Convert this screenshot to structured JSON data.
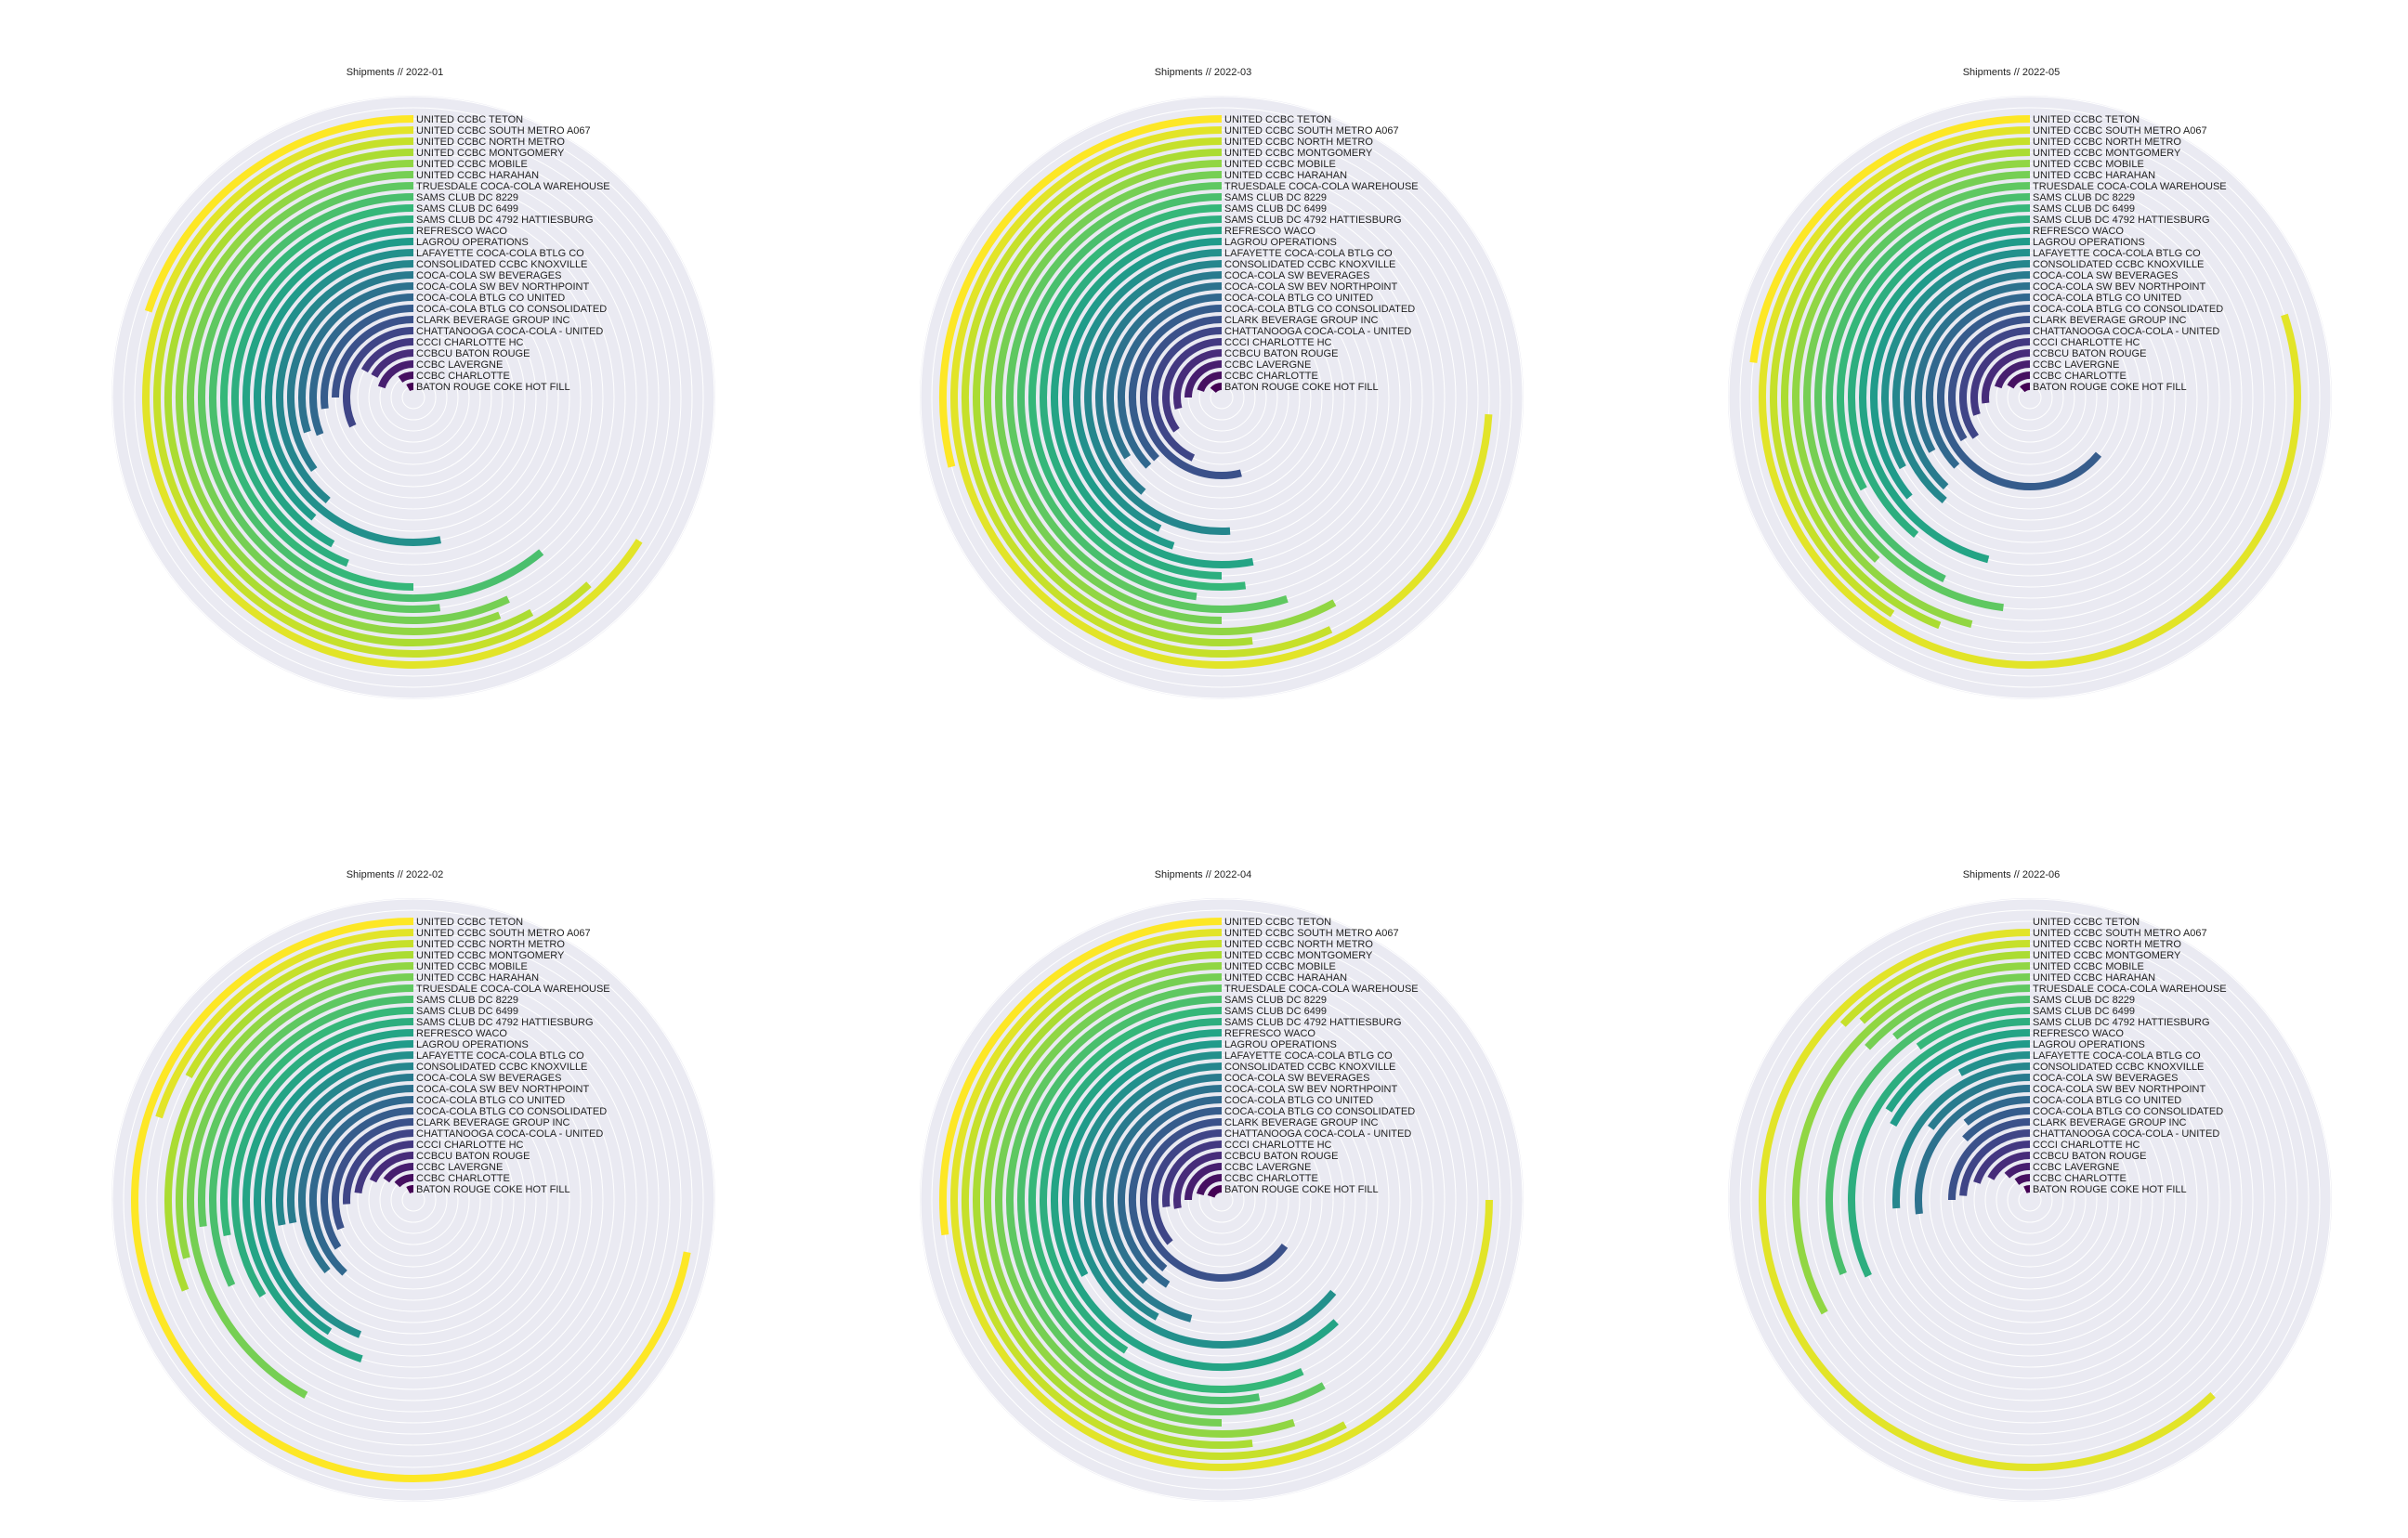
{
  "figure_background": "#ffffff",
  "track_color": "#eaeaf2",
  "grid_color": "#ffffff",
  "colormap": "viridis",
  "chart_data": [
    {
      "type": "radial-bar",
      "title": "Shipments // 2022-01",
      "categories": [
        "UNITED CCBC TETON",
        "UNITED CCBC SOUTH METRO A067",
        "UNITED CCBC NORTH METRO",
        "UNITED CCBC MONTGOMERY",
        "UNITED CCBC MOBILE",
        "UNITED CCBC HARAHAN",
        "TRUESDALE COCA-COLA WAREHOUSE",
        "SAMS CLUB DC 8229",
        "SAMS CLUB DC 6499",
        "SAMS CLUB DC 4792 HATTIESBURG",
        "REFRESCO WACO",
        "LAGROU OPERATIONS",
        "LAFAYETTE COCA-COLA BTLG CO",
        "CONSOLIDATED CCBC KNOXVILLE",
        "COCA-COLA SW BEVERAGES",
        "COCA-COLA SW BEV NORTHPOINT",
        "COCA-COLA BTLG CO UNITED",
        "COCA-COLA BTLG CO CONSOLIDATED",
        "CLARK BEVERAGE GROUP INC",
        "CHATTANOOGA COCA-COLA - UNITED",
        "CCCI CHARLOTTE HC",
        "CCBCU BATON ROUGE",
        "CCBC LAVERGNE",
        "CCBC CHARLOTTE",
        "BATON ROUGE COKE HOT FILL"
      ],
      "values": [
        20,
        66,
        62,
        58,
        56,
        57,
        52,
        61,
        50,
        44,
        42,
        39,
        53,
        39,
        35,
        30,
        31,
        27,
        25,
        32,
        17,
        17,
        20,
        10,
        8
      ],
      "max": 100,
      "start_angle_deg": 0,
      "direction": "counterclockwise"
    },
    {
      "type": "radial-bar",
      "title": "Shipments // 2022-02",
      "categories": [
        "UNITED CCBC TETON",
        "UNITED CCBC SOUTH METRO A067",
        "UNITED CCBC NORTH METRO",
        "UNITED CCBC MONTGOMERY",
        "UNITED CCBC MOBILE",
        "UNITED CCBC HARAHAN",
        "TRUESDALE COCA-COLA WAREHOUSE",
        "SAMS CLUB DC 8229",
        "SAMS CLUB DC 6499",
        "SAMS CLUB DC 4792 HATTIESBURG",
        "REFRESCO WACO",
        "LAGROU OPERATIONS",
        "LAFAYETTE COCA-COLA BTLG CO",
        "CONSOLIDATED CCBC KNOXVILLE",
        "COCA-COLA SW BEVERAGES",
        "COCA-COLA SW BEV NORTHPOINT",
        "COCA-COLA BTLG CO UNITED",
        "COCA-COLA BTLG CO CONSOLIDATED",
        "CLARK BEVERAGE GROUP INC",
        "CHATTANOOGA COCA-COLA - UNITED",
        "CCCI CHARLOTTE HC",
        "CCBCU BATON ROUGE",
        "CCBC LAVERGNE",
        "CCBC CHARLOTTE",
        "BATON ROUGE COKE HOT FILL"
      ],
      "values": [
        72,
        20,
        17,
        31,
        29,
        42,
        27,
        32,
        28,
        34,
        45,
        41,
        44,
        28,
        28,
        36,
        38,
        34,
        31,
        26,
        23,
        18,
        15,
        13,
        8
      ],
      "max": 100,
      "start_angle_deg": 0,
      "direction": "counterclockwise"
    },
    {
      "type": "radial-bar",
      "title": "Shipments // 2022-03",
      "categories": [
        "UNITED CCBC TETON",
        "UNITED CCBC SOUTH METRO A067",
        "UNITED CCBC NORTH METRO",
        "UNITED CCBC MONTGOMERY",
        "UNITED CCBC MOBILE",
        "UNITED CCBC HARAHAN",
        "TRUESDALE COCA-COLA WAREHOUSE",
        "SAMS CLUB DC 8229",
        "SAMS CLUB DC 6499",
        "SAMS CLUB DC 4792 HATTIESBURG",
        "REFRESCO WACO",
        "LAGROU OPERATIONS",
        "LAFAYETTE COCA-COLA BTLG CO",
        "CONSOLIDATED CCBC KNOXVILLE",
        "COCA-COLA SW BEVERAGES",
        "COCA-COLA SW BEV NORTHPOINT",
        "COCA-COLA BTLG CO UNITED",
        "COCA-COLA BTLG CO CONSOLIDATED",
        "CLARK BEVERAGE GROUP INC",
        "CHATTANOOGA COCA-COLA - UNITED",
        "CCCI CHARLOTTE HC",
        "CCBCU BATON ROUGE",
        "CCBC LAVERGNE",
        "CCBC CHARLOTTE",
        "BATON ROUGE COKE HOT FILL"
      ],
      "values": [
        29,
        74,
        57,
        52,
        58,
        50,
        55,
        48,
        52,
        50,
        53,
        45,
        43,
        51,
        39,
        34,
        37,
        37,
        54,
        43,
        35,
        29,
        25,
        20,
        14
      ],
      "max": 100,
      "start_angle_deg": 0,
      "direction": "counterclockwise"
    },
    {
      "type": "radial-bar",
      "title": "Shipments // 2022-04",
      "categories": [
        "UNITED CCBC TETON",
        "UNITED CCBC SOUTH METRO A067",
        "UNITED CCBC NORTH METRO",
        "UNITED CCBC MONTGOMERY",
        "UNITED CCBC MOBILE",
        "UNITED CCBC HARAHAN",
        "TRUESDALE COCA-COLA WAREHOUSE",
        "SAMS CLUB DC 8229",
        "SAMS CLUB DC 6499",
        "SAMS CLUB DC 4792 HATTIESBURG",
        "REFRESCO WACO",
        "LAGROU OPERATIONS",
        "LAFAYETTE COCA-COLA BTLG CO",
        "CONSOLIDATED CCBC KNOXVILLE",
        "COCA-COLA SW BEVERAGES",
        "COCA-COLA SW BEV NORTHPOINT",
        "COCA-COLA BTLG CO UNITED",
        "COCA-COLA BTLG CO CONSOLIDATED",
        "CLARK BEVERAGE GROUP INC",
        "CHATTANOOGA COCA-COLA - UNITED",
        "CCCI CHARLOTTE HC",
        "CCBCU BATON ROUGE",
        "CCBC LAVERGNE",
        "CCBC CHARLOTTE",
        "BATON ROUGE COKE HOT FILL"
      ],
      "values": [
        27,
        75,
        58,
        52,
        55,
        50,
        58,
        53,
        57,
        41,
        62,
        33,
        64,
        42,
        46,
        38,
        41,
        39,
        65,
        36,
        27,
        28,
        25,
        21,
        20
      ],
      "max": 100,
      "start_angle_deg": 0,
      "direction": "counterclockwise"
    },
    {
      "type": "radial-bar",
      "title": "Shipments // 2022-05",
      "categories": [
        "UNITED CCBC TETON",
        "UNITED CCBC SOUTH METRO A067",
        "UNITED CCBC NORTH METRO",
        "UNITED CCBC MONTGOMERY",
        "UNITED CCBC MOBILE",
        "UNITED CCBC HARAHAN",
        "TRUESDALE COCA-COLA WAREHOUSE",
        "SAMS CLUB DC 8229",
        "SAMS CLUB DC 6499",
        "SAMS CLUB DC 4792 HATTIESBURG",
        "REFRESCO WACO",
        "LAGROU OPERATIONS",
        "LAFAYETTE COCA-COLA BTLG CO",
        "CONSOLIDATED CCBC KNOXVILLE",
        "COCA-COLA SW BEVERAGES",
        "COCA-COLA SW BEV NORTHPOINT",
        "COCA-COLA BTLG CO UNITED",
        "COCA-COLA BTLG CO CONSOLIDATED",
        "CLARK BEVERAGE GROUP INC",
        "CHATTANOOGA COCA-COLA - UNITED",
        "CCCI CHARLOTTE HC",
        "CCBCU BATON ROUGE",
        "CCBC LAVERGNE",
        "CCBC CHARLOTTE",
        "BATON ROUGE COKE HOT FILL"
      ],
      "values": [
        23,
        80,
        41,
        44,
        46,
        38,
        48,
        43,
        33,
        39,
        46,
        36,
        33,
        39,
        38,
        33,
        37,
        64,
        34,
        35,
        30,
        27,
        20,
        17,
        12
      ],
      "max": 100,
      "start_angle_deg": 0,
      "direction": "counterclockwise"
    },
    {
      "type": "radial-bar",
      "title": "Shipments // 2022-06",
      "categories": [
        "UNITED CCBC TETON",
        "UNITED CCBC SOUTH METRO A067",
        "UNITED CCBC NORTH METRO",
        "UNITED CCBC MONTGOMERY",
        "UNITED CCBC MOBILE",
        "UNITED CCBC HARAHAN",
        "TRUESDALE COCA-COLA WAREHOUSE",
        "SAMS CLUB DC 8229",
        "SAMS CLUB DC 6499",
        "SAMS CLUB DC 4792 HATTIESBURG",
        "REFRESCO WACO",
        "LAGROU OPERATIONS",
        "LAFAYETTE COCA-COLA BTLG CO",
        "CONSOLIDATED CCBC KNOXVILLE",
        "COCA-COLA SW BEVERAGES",
        "COCA-COLA SW BEV NORTHPOINT",
        "COCA-COLA BTLG CO UNITED",
        "COCA-COLA BTLG CO CONSOLIDATED",
        "CLARK BEVERAGE GROUP INC",
        "CHATTANOOGA COCA-COLA - UNITED",
        "CCCI CHARLOTTE HC",
        "CCBCU BATON ROUGE",
        "CCBC LAVERGNE",
        "CCBC CHARLOTTE",
        "BATON ROUGE COKE HOT FILL"
      ],
      "values": [
        0,
        62,
        13,
        12,
        33,
        13,
        11,
        31,
        10,
        32,
        16,
        17,
        8,
        26,
        15,
        27,
        11,
        13,
        25,
        24,
        20,
        17,
        12,
        10,
        7
      ],
      "max": 100,
      "start_angle_deg": 0,
      "direction": "counterclockwise"
    }
  ]
}
